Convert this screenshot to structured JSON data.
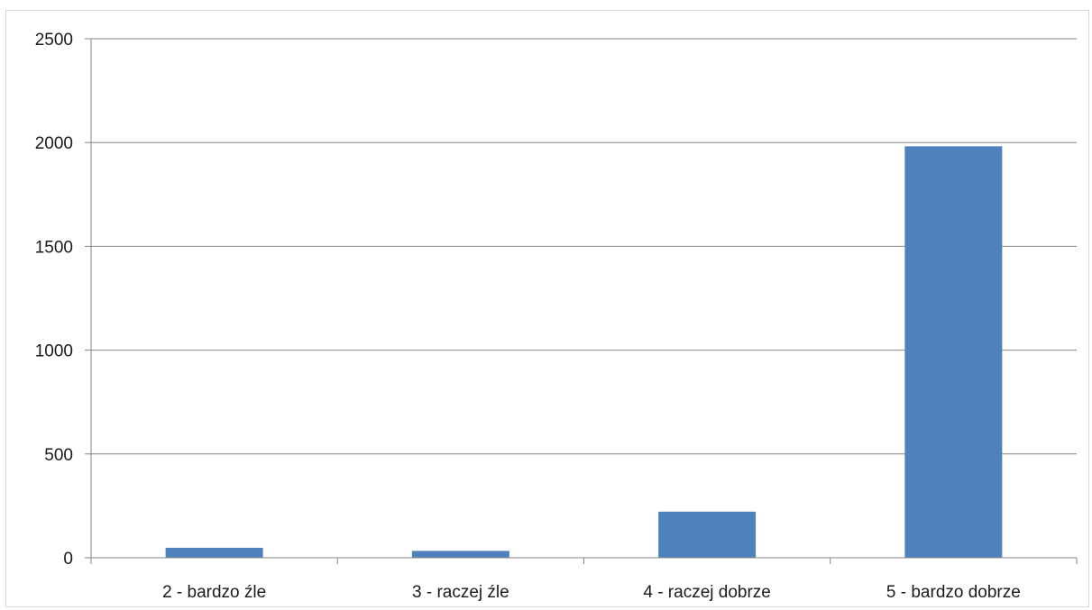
{
  "chart_data": {
    "type": "bar",
    "title": "",
    "xlabel": "",
    "ylabel": "",
    "categories": [
      "2 - bardzo źle",
      "3 - raczej źle",
      "4 - raczej dobrze",
      "5 - bardzo dobrze"
    ],
    "values": [
      48,
      33,
      222,
      1982
    ],
    "ylim": [
      0,
      2500
    ],
    "yticks": [
      0,
      500,
      1000,
      1500,
      2000,
      2500
    ],
    "ytick_labels": [
      "0",
      "500",
      "1000",
      "1500",
      "2000",
      "2500"
    ],
    "grid": true,
    "legend": "none",
    "bar_color": "#4f81bd",
    "gridline_color": "#868686",
    "axis_color": "#868686"
  }
}
